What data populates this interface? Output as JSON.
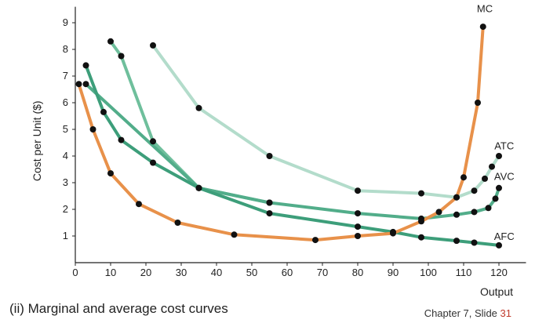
{
  "chart_data": {
    "type": "line",
    "title": "",
    "xlabel": "Output",
    "ylabel": "Cost per Unit ($)",
    "xlim": [
      0,
      125
    ],
    "ylim": [
      0,
      9.6
    ],
    "xticks": [
      0,
      10,
      20,
      30,
      40,
      50,
      60,
      70,
      80,
      90,
      100,
      110,
      120
    ],
    "yticks": [
      1,
      2,
      3,
      4,
      5,
      6,
      7,
      8,
      9
    ],
    "grid": false,
    "series": [
      {
        "name": "MC",
        "color": "#e8914a",
        "points": [
          [
            1,
            6.7
          ],
          [
            5,
            5.0
          ],
          [
            10,
            3.35
          ],
          [
            18,
            2.2
          ],
          [
            29,
            1.5
          ],
          [
            45,
            1.05
          ],
          [
            68,
            0.85
          ],
          [
            80,
            1.0
          ],
          [
            90,
            1.1
          ],
          [
            98,
            1.55
          ],
          [
            103,
            1.9
          ],
          [
            108,
            2.45
          ],
          [
            110,
            3.2
          ],
          [
            114,
            6.0
          ],
          [
            115.5,
            8.85
          ]
        ]
      },
      {
        "name": "AFC",
        "color": "#3d9e7a",
        "points": [
          [
            3,
            7.4
          ],
          [
            8,
            5.65
          ],
          [
            13,
            4.6
          ],
          [
            22,
            3.75
          ],
          [
            35,
            2.8
          ],
          [
            55,
            1.85
          ],
          [
            80,
            1.35
          ],
          [
            90,
            1.15
          ],
          [
            98,
            0.95
          ],
          [
            108,
            0.82
          ],
          [
            113,
            0.75
          ],
          [
            120,
            0.65
          ]
        ]
      },
      {
        "name": "AVC",
        "color": "#52ad8a",
        "points": [
          [
            3,
            6.7
          ],
          [
            35,
            2.8
          ],
          [
            55,
            2.25
          ],
          [
            80,
            1.85
          ],
          [
            98,
            1.65
          ],
          [
            108,
            1.8
          ],
          [
            113,
            1.9
          ],
          [
            117,
            2.05
          ],
          [
            119,
            2.4
          ],
          [
            120,
            2.8
          ]
        ]
      },
      {
        "name": "ATC",
        "color": "#b3dccb",
        "points": [
          [
            22,
            8.15
          ],
          [
            35,
            5.8
          ],
          [
            55,
            4.0
          ],
          [
            80,
            2.7
          ],
          [
            98,
            2.6
          ],
          [
            108,
            2.45
          ],
          [
            113,
            2.7
          ],
          [
            116,
            3.15
          ],
          [
            118,
            3.6
          ],
          [
            120,
            4.0
          ]
        ]
      },
      {
        "name": "",
        "color": "#6fbf9c",
        "points": [
          [
            10,
            8.3
          ],
          [
            13,
            7.75
          ],
          [
            22,
            4.55
          ],
          [
            35,
            2.8
          ],
          [
            55,
            2.25
          ]
        ]
      }
    ],
    "curve_labels": [
      {
        "text": "MC",
        "x": 116,
        "y": 9.4
      },
      {
        "text": "ATC",
        "x": 121.5,
        "y": 4.25
      },
      {
        "text": "AVC",
        "x": 121.5,
        "y": 3.1
      },
      {
        "text": "AFC",
        "x": 121.5,
        "y": 0.85
      }
    ]
  },
  "caption": "(ii) Marginal and average cost curves",
  "slide_note": {
    "prefix": "Chapter 7, Slide ",
    "number": "31"
  }
}
